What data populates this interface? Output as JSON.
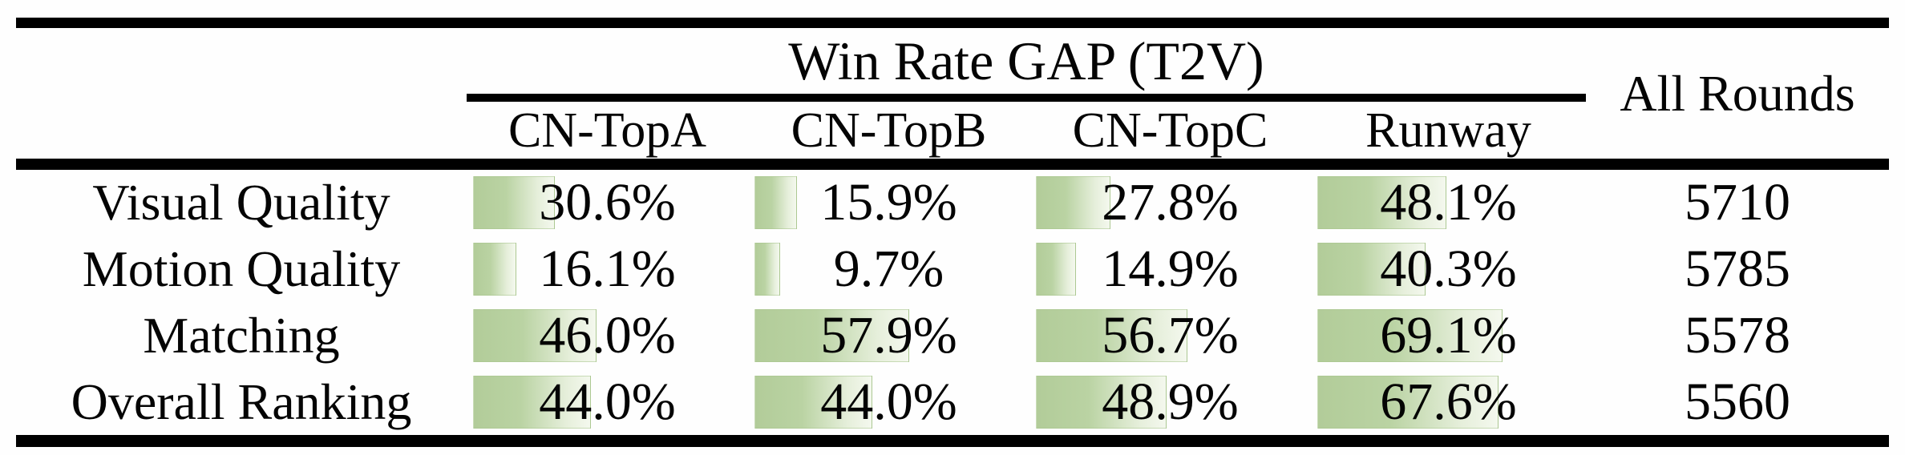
{
  "table": {
    "group_header": "Win Rate GAP (T2V)",
    "all_rounds_header": "All Rounds",
    "model_columns": [
      "CN-TopA",
      "CN-TopB",
      "CN-TopC",
      "Runway"
    ],
    "rows": [
      {
        "label": "Visual Quality",
        "cells": [
          {
            "text": "30.6%",
            "pct": 30.6
          },
          {
            "text": "15.9%",
            "pct": 15.9
          },
          {
            "text": "27.8%",
            "pct": 27.8
          },
          {
            "text": "48.1%",
            "pct": 48.1
          }
        ],
        "all_rounds": "5710"
      },
      {
        "label": "Motion Quality",
        "cells": [
          {
            "text": "16.1%",
            "pct": 16.1
          },
          {
            "text": "9.7%",
            "pct": 9.7
          },
          {
            "text": "14.9%",
            "pct": 14.9
          },
          {
            "text": "40.3%",
            "pct": 40.3
          }
        ],
        "all_rounds": "5785"
      },
      {
        "label": "Matching",
        "cells": [
          {
            "text": "46.0%",
            "pct": 46.0
          },
          {
            "text": "57.9%",
            "pct": 57.9
          },
          {
            "text": "56.7%",
            "pct": 56.7
          },
          {
            "text": "69.1%",
            "pct": 69.1
          }
        ],
        "all_rounds": "5578"
      },
      {
        "label": "Overall Ranking",
        "cells": [
          {
            "text": "44.0%",
            "pct": 44.0
          },
          {
            "text": "44.0%",
            "pct": 44.0
          },
          {
            "text": "48.9%",
            "pct": 48.9
          },
          {
            "text": "67.6%",
            "pct": 67.6
          }
        ],
        "all_rounds": "5560"
      }
    ],
    "colors": {
      "bar_green": "#b2cc99",
      "bar_fade": "#f4f8ee",
      "rule_black": "#000000"
    }
  },
  "chart_data": {
    "type": "table",
    "title": "Win Rate GAP (T2V)",
    "categories": [
      "Visual Quality",
      "Motion Quality",
      "Matching",
      "Overall Ranking"
    ],
    "series": [
      {
        "name": "CN-TopA",
        "values": [
          30.6,
          16.1,
          46.0,
          44.0
        ]
      },
      {
        "name": "CN-TopB",
        "values": [
          15.9,
          9.7,
          57.9,
          44.0
        ]
      },
      {
        "name": "CN-TopC",
        "values": [
          27.8,
          14.9,
          56.7,
          48.9
        ]
      },
      {
        "name": "Runway",
        "values": [
          48.1,
          40.3,
          69.1,
          67.6
        ]
      }
    ],
    "extra_column": {
      "name": "All Rounds",
      "values": [
        5710,
        5785,
        5578,
        5560
      ]
    },
    "unit": "%",
    "bar_scale": [
      0,
      100
    ]
  }
}
